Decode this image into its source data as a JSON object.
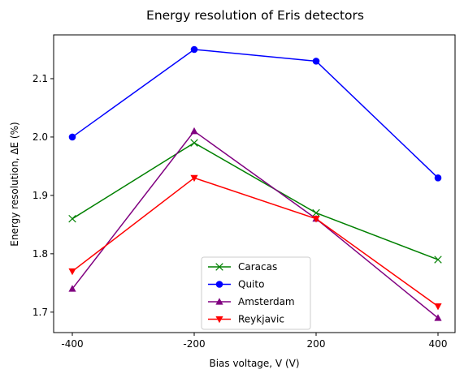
{
  "chart_data": {
    "type": "line",
    "title": "Energy resolution of Eris detectors",
    "xlabel": "Bias voltage, V (V)",
    "ylabel": "Energy resolution, ΔE (%)",
    "categories": [
      "-400",
      "-200",
      "200",
      "400"
    ],
    "ylim": [
      1.665,
      2.175
    ],
    "yticks": [
      "1.7",
      "1.8",
      "1.9",
      "2.0",
      "2.1"
    ],
    "grid": false,
    "legend_position": "bottom-center",
    "series": [
      {
        "name": "Caracas",
        "color": "#008000",
        "marker": "x",
        "values": [
          1.86,
          1.99,
          1.87,
          1.79
        ]
      },
      {
        "name": "Quito",
        "color": "#0000ff",
        "marker": "circle",
        "values": [
          2.0,
          2.15,
          2.13,
          1.93
        ]
      },
      {
        "name": "Amsterdam",
        "color": "#800080",
        "marker": "triangle-up",
        "values": [
          1.74,
          2.01,
          1.86,
          1.69
        ]
      },
      {
        "name": "Reykjavic",
        "color": "#ff0000",
        "marker": "triangle-down",
        "values": [
          1.77,
          1.93,
          1.86,
          1.71
        ]
      }
    ]
  }
}
